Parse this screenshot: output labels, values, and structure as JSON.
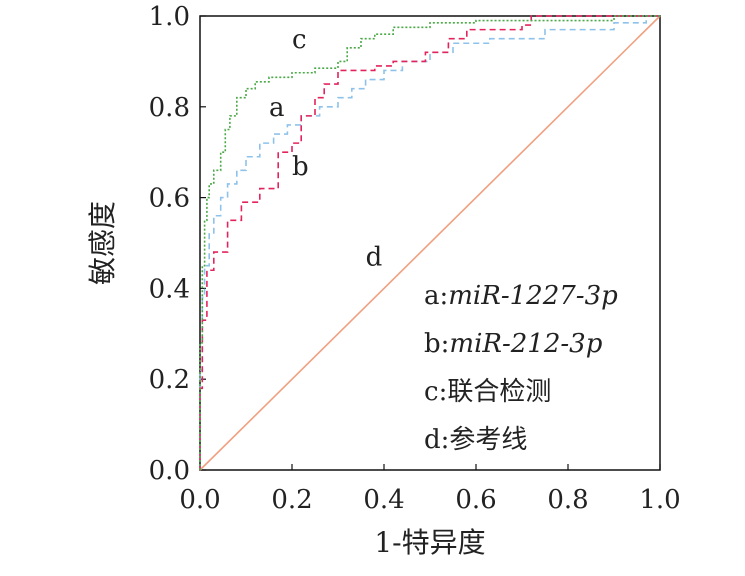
{
  "chart_data": {
    "type": "line",
    "xlabel": "1-特异度",
    "ylabel": "敏感度",
    "xlim": [
      0,
      1
    ],
    "ylim": [
      0,
      1
    ],
    "x_ticks": [
      "0.0",
      "0.2",
      "0.4",
      "0.6",
      "0.8",
      "1.0"
    ],
    "y_ticks": [
      "0.0",
      "0.2",
      "0.4",
      "0.6",
      "0.8",
      "1.0"
    ],
    "grid": false,
    "legend_position": "bottom-right",
    "legend": [
      {
        "key": "a",
        "sep": ":",
        "label": "miR-1227-3p",
        "italic": true
      },
      {
        "key": "b",
        "sep": ":",
        "label": "miR-212-3p",
        "italic": true
      },
      {
        "key": "c",
        "sep": ":",
        "label": "联合检测",
        "italic": false
      },
      {
        "key": "d",
        "sep": ":",
        "label": "参考线",
        "italic": false
      }
    ],
    "series": [
      {
        "name": "a",
        "color": "#8ec2ea",
        "dash": "dashed",
        "label_at": [
          0.15,
          0.78
        ],
        "points": [
          [
            0,
            0
          ],
          [
            0,
            0.22
          ],
          [
            0.005,
            0.22
          ],
          [
            0.005,
            0.38
          ],
          [
            0.01,
            0.38
          ],
          [
            0.01,
            0.45
          ],
          [
            0.02,
            0.45
          ],
          [
            0.02,
            0.52
          ],
          [
            0.03,
            0.52
          ],
          [
            0.03,
            0.56
          ],
          [
            0.045,
            0.56
          ],
          [
            0.045,
            0.6
          ],
          [
            0.06,
            0.6
          ],
          [
            0.06,
            0.63
          ],
          [
            0.08,
            0.63
          ],
          [
            0.08,
            0.66
          ],
          [
            0.1,
            0.66
          ],
          [
            0.1,
            0.69
          ],
          [
            0.13,
            0.69
          ],
          [
            0.13,
            0.72
          ],
          [
            0.16,
            0.72
          ],
          [
            0.16,
            0.74
          ],
          [
            0.19,
            0.74
          ],
          [
            0.19,
            0.76
          ],
          [
            0.22,
            0.76
          ],
          [
            0.22,
            0.78
          ],
          [
            0.26,
            0.78
          ],
          [
            0.26,
            0.8
          ],
          [
            0.3,
            0.8
          ],
          [
            0.3,
            0.82
          ],
          [
            0.33,
            0.82
          ],
          [
            0.33,
            0.84
          ],
          [
            0.36,
            0.84
          ],
          [
            0.36,
            0.86
          ],
          [
            0.4,
            0.86
          ],
          [
            0.4,
            0.88
          ],
          [
            0.44,
            0.88
          ],
          [
            0.44,
            0.9
          ],
          [
            0.5,
            0.9
          ],
          [
            0.5,
            0.92
          ],
          [
            0.55,
            0.92
          ],
          [
            0.55,
            0.94
          ],
          [
            0.63,
            0.94
          ],
          [
            0.63,
            0.95
          ],
          [
            0.75,
            0.95
          ],
          [
            0.75,
            0.97
          ],
          [
            0.9,
            0.97
          ],
          [
            0.9,
            0.985
          ],
          [
            0.97,
            0.985
          ],
          [
            0.97,
            1
          ],
          [
            1,
            1
          ]
        ]
      },
      {
        "name": "b",
        "color": "#e3245c",
        "dash": "dashed",
        "label_at": [
          0.2,
          0.65
        ],
        "points": [
          [
            0,
            0
          ],
          [
            0,
            0.18
          ],
          [
            0.005,
            0.18
          ],
          [
            0.005,
            0.33
          ],
          [
            0.015,
            0.33
          ],
          [
            0.015,
            0.44
          ],
          [
            0.03,
            0.44
          ],
          [
            0.03,
            0.48
          ],
          [
            0.06,
            0.48
          ],
          [
            0.06,
            0.55
          ],
          [
            0.09,
            0.55
          ],
          [
            0.09,
            0.59
          ],
          [
            0.13,
            0.59
          ],
          [
            0.13,
            0.62
          ],
          [
            0.17,
            0.62
          ],
          [
            0.17,
            0.7
          ],
          [
            0.2,
            0.7
          ],
          [
            0.2,
            0.72
          ],
          [
            0.22,
            0.72
          ],
          [
            0.22,
            0.78
          ],
          [
            0.25,
            0.78
          ],
          [
            0.25,
            0.82
          ],
          [
            0.27,
            0.82
          ],
          [
            0.27,
            0.85
          ],
          [
            0.3,
            0.85
          ],
          [
            0.3,
            0.88
          ],
          [
            0.38,
            0.88
          ],
          [
            0.38,
            0.89
          ],
          [
            0.42,
            0.89
          ],
          [
            0.42,
            0.9
          ],
          [
            0.49,
            0.9
          ],
          [
            0.49,
            0.92
          ],
          [
            0.54,
            0.92
          ],
          [
            0.54,
            0.95
          ],
          [
            0.58,
            0.95
          ],
          [
            0.58,
            0.97
          ],
          [
            0.7,
            0.97
          ],
          [
            0.7,
            0.98
          ],
          [
            0.72,
            0.98
          ],
          [
            0.72,
            1
          ],
          [
            1,
            1
          ]
        ]
      },
      {
        "name": "c",
        "color": "#4aa846",
        "dash": "dotted",
        "label_at": [
          0.2,
          0.93
        ],
        "points": [
          [
            0,
            0
          ],
          [
            0,
            0.28
          ],
          [
            0.005,
            0.28
          ],
          [
            0.005,
            0.45
          ],
          [
            0.01,
            0.45
          ],
          [
            0.01,
            0.55
          ],
          [
            0.015,
            0.55
          ],
          [
            0.015,
            0.6
          ],
          [
            0.02,
            0.6
          ],
          [
            0.02,
            0.63
          ],
          [
            0.03,
            0.63
          ],
          [
            0.03,
            0.66
          ],
          [
            0.045,
            0.66
          ],
          [
            0.045,
            0.7
          ],
          [
            0.055,
            0.7
          ],
          [
            0.055,
            0.75
          ],
          [
            0.065,
            0.75
          ],
          [
            0.065,
            0.78
          ],
          [
            0.08,
            0.78
          ],
          [
            0.08,
            0.82
          ],
          [
            0.1,
            0.82
          ],
          [
            0.1,
            0.84
          ],
          [
            0.12,
            0.84
          ],
          [
            0.12,
            0.855
          ],
          [
            0.15,
            0.855
          ],
          [
            0.15,
            0.865
          ],
          [
            0.2,
            0.865
          ],
          [
            0.2,
            0.875
          ],
          [
            0.25,
            0.875
          ],
          [
            0.25,
            0.885
          ],
          [
            0.3,
            0.885
          ],
          [
            0.3,
            0.9
          ],
          [
            0.32,
            0.9
          ],
          [
            0.32,
            0.93
          ],
          [
            0.35,
            0.93
          ],
          [
            0.35,
            0.95
          ],
          [
            0.38,
            0.95
          ],
          [
            0.38,
            0.96
          ],
          [
            0.42,
            0.96
          ],
          [
            0.42,
            0.975
          ],
          [
            0.5,
            0.975
          ],
          [
            0.5,
            0.985
          ],
          [
            0.6,
            0.985
          ],
          [
            0.6,
            0.99
          ],
          [
            0.9,
            0.99
          ],
          [
            0.9,
            1
          ],
          [
            1,
            1
          ]
        ]
      },
      {
        "name": "d",
        "color": "#f0a080",
        "dash": "solid",
        "label_at": [
          0.36,
          0.45
        ],
        "points": [
          [
            0,
            0
          ],
          [
            1,
            1
          ]
        ]
      }
    ]
  }
}
